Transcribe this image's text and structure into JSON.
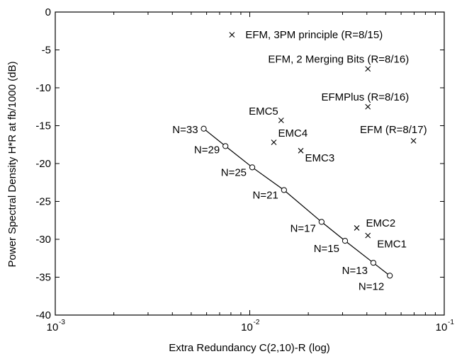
{
  "chart_data": {
    "type": "scatter",
    "title": "",
    "xlabel": "Extra Redundancy C(2,10)-R (log)",
    "ylabel": "Power Spectral Density H*R at fb/1000 (dB)",
    "xscale": "log",
    "xlim": [
      0.001,
      0.1
    ],
    "ylim": [
      -40,
      0
    ],
    "grid": false,
    "legend": "none",
    "x_ticks": [
      {
        "value": 0.001,
        "base": "10",
        "exp": "-3"
      },
      {
        "value": 0.01,
        "base": "10",
        "exp": "-2"
      },
      {
        "value": 0.1,
        "base": "10",
        "exp": "-1"
      }
    ],
    "y_ticks": [
      {
        "value": 0,
        "label": "0"
      },
      {
        "value": -5,
        "label": "-5"
      },
      {
        "value": -10,
        "label": "-10"
      },
      {
        "value": -15,
        "label": "-15"
      },
      {
        "value": -20,
        "label": "-20"
      },
      {
        "value": -25,
        "label": "-25"
      },
      {
        "value": -30,
        "label": "-30"
      },
      {
        "value": -35,
        "label": "-35"
      },
      {
        "value": -40,
        "label": "-40"
      }
    ],
    "series": [
      {
        "marker": "o",
        "connected": true,
        "points": [
          {
            "x": 0.0058,
            "y": -15.4,
            "label": "N=33"
          },
          {
            "x": 0.0075,
            "y": -17.7,
            "label": "N=29"
          },
          {
            "x": 0.0103,
            "y": -20.5,
            "label": "N=25"
          },
          {
            "x": 0.015,
            "y": -23.5,
            "label": "N=21"
          },
          {
            "x": 0.0234,
            "y": -27.7,
            "label": "N=17"
          },
          {
            "x": 0.0309,
            "y": -30.2,
            "label": "N=15"
          },
          {
            "x": 0.0432,
            "y": -33.1,
            "label": "N=13"
          },
          {
            "x": 0.0525,
            "y": -34.8,
            "label": "N=12"
          }
        ]
      },
      {
        "marker": "x",
        "connected": false,
        "points": [
          {
            "x": 0.0081,
            "y": -3.0,
            "label": "EFM, 3PM principle (R=8/15)"
          },
          {
            "x": 0.0405,
            "y": -7.5,
            "label": "EFM, 2 Merging Bits (R=8/16)"
          },
          {
            "x": 0.0405,
            "y": -12.5,
            "label": "EFMPlus (R=8/16)"
          },
          {
            "x": 0.0695,
            "y": -17.0,
            "label": "EFM (R=8/17)"
          },
          {
            "x": 0.0145,
            "y": -14.3,
            "label": "EMC5"
          },
          {
            "x": 0.0133,
            "y": -17.2,
            "label": "EMC4"
          },
          {
            "x": 0.0183,
            "y": -18.3,
            "label": "EMC3"
          },
          {
            "x": 0.0355,
            "y": -28.5,
            "label": "EMC2"
          },
          {
            "x": 0.0405,
            "y": -29.5,
            "label": "EMC1"
          }
        ]
      }
    ]
  }
}
